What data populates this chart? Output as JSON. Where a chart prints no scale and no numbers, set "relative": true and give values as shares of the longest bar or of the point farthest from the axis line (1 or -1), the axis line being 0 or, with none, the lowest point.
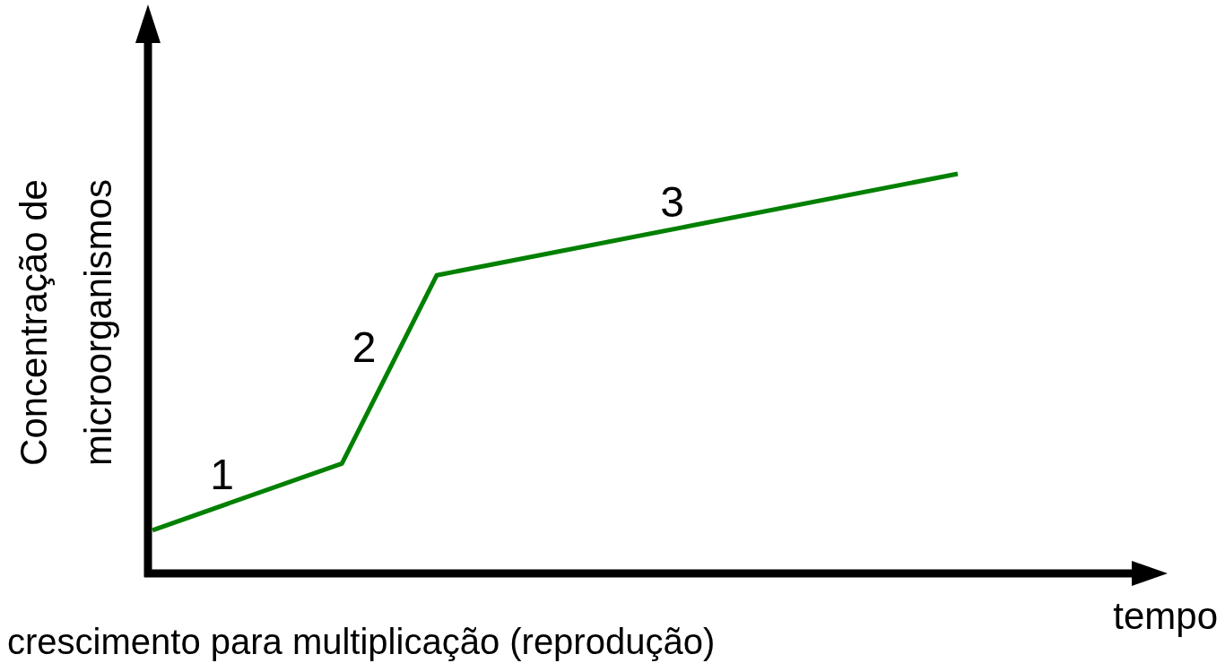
{
  "chart_data": {
    "type": "line",
    "relative": true,
    "xlabel": "tempo",
    "ylabel": "Concentração de\nmicroorganismos",
    "categories": [
      null,
      null,
      null,
      null,
      null,
      null,
      null,
      null,
      null,
      null,
      null,
      null,
      null,
      null,
      null,
      null,
      null,
      null
    ],
    "series": [
      {
        "color": "#008000",
        "values": [
          0.108,
          null,
          null,
          null,
          0.275,
          null,
          0.746,
          null,
          null,
          null,
          null,
          null,
          null,
          null,
          null,
          null,
          null,
          1
        ]
      }
    ],
    "marker": "none",
    "line_style": "solid",
    "legend": false,
    "annotations": [
      "1",
      "2",
      "3",
      "crescimento para multiplicação (reprodução)"
    ]
  }
}
